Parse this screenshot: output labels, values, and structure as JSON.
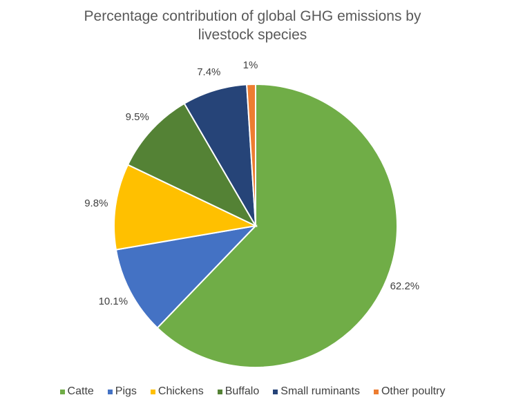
{
  "chart_data": {
    "type": "pie",
    "title": "Percentage contribution of global GHG emissions by livestock species",
    "title_lines": [
      "Percentage contribution of global GHG emissions by",
      "livestock species"
    ],
    "categories": [
      "Catte",
      "Pigs",
      "Chickens",
      "Buffalo",
      "Small ruminants",
      "Other poultry"
    ],
    "values": [
      62.2,
      10.1,
      9.8,
      9.5,
      7.4,
      1
    ],
    "labels": [
      "62.2%",
      "10.1%",
      "9.8%",
      "9.5%",
      "7.4%",
      "1%"
    ],
    "colors": [
      "#70ad47",
      "#4472c4",
      "#ffc000",
      "#548235",
      "#264478",
      "#ed7d31"
    ],
    "legend_position": "bottom"
  }
}
